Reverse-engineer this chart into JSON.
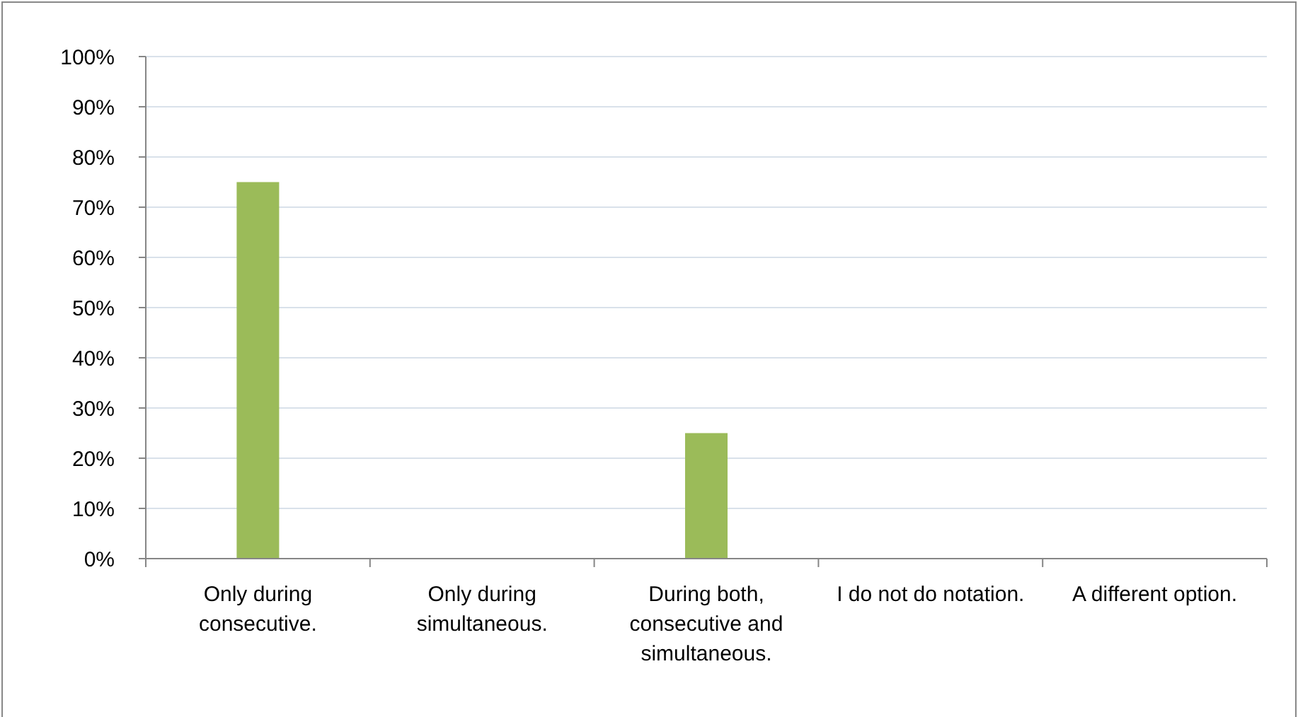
{
  "chart_data": {
    "type": "bar",
    "categories": [
      "Only during consecutive.",
      "Only during simultaneous.",
      "During both, consecutive and simultaneous.",
      "I do not do notation.",
      "A different option."
    ],
    "values": [
      75,
      0,
      25,
      0,
      0
    ],
    "color": "#9bbb59",
    "ylim": [
      0,
      100
    ],
    "yticks": [
      {
        "value": 0,
        "label": "0%"
      },
      {
        "value": 10,
        "label": "10%"
      },
      {
        "value": 20,
        "label": "20%"
      },
      {
        "value": 30,
        "label": "30%"
      },
      {
        "value": 40,
        "label": "40%"
      },
      {
        "value": 50,
        "label": "50%"
      },
      {
        "value": 60,
        "label": "60%"
      },
      {
        "value": 70,
        "label": "70%"
      },
      {
        "value": 80,
        "label": "80%"
      },
      {
        "value": 90,
        "label": "90%"
      },
      {
        "value": 100,
        "label": "100%"
      }
    ],
    "grid": "y"
  }
}
